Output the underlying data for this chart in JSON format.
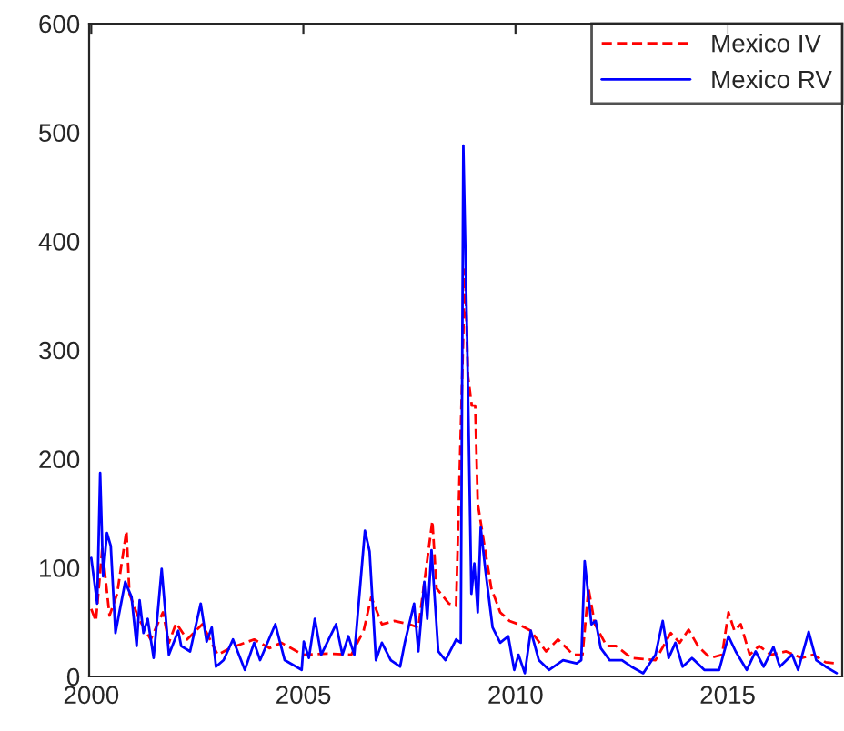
{
  "chart_data": {
    "type": "line",
    "xlim": [
      1999.95,
      2017.7
    ],
    "ylim": [
      0,
      600
    ],
    "xticks": [
      2000,
      2005,
      2010,
      2015
    ],
    "yticks": [
      0,
      100,
      200,
      300,
      400,
      500,
      600
    ],
    "grid": false,
    "legend": "top right",
    "marker": "none",
    "series": [
      {
        "name": "Mexico IV",
        "color": "#ff0000",
        "line_style": "dashed",
        "x": [
          2000.0,
          2000.11,
          2000.26,
          2000.43,
          2000.61,
          2000.83,
          2000.9,
          2001.12,
          2001.4,
          2001.69,
          2001.83,
          2002.0,
          2002.26,
          2002.62,
          2002.98,
          2003.27,
          2003.84,
          2004.2,
          2004.48,
          2004.99,
          2005.56,
          2006.13,
          2006.42,
          2006.6,
          2006.85,
          2007.14,
          2007.49,
          2007.71,
          2008.04,
          2008.14,
          2008.43,
          2008.6,
          2008.81,
          2008.88,
          2008.97,
          2009.05,
          2009.11,
          2009.29,
          2009.43,
          2009.64,
          2009.86,
          2010.07,
          2010.36,
          2010.72,
          2011.0,
          2011.36,
          2011.58,
          2011.72,
          2011.87,
          2012.15,
          2012.37,
          2012.73,
          2013.3,
          2013.66,
          2013.87,
          2014.08,
          2014.3,
          2014.59,
          2014.87,
          2015.02,
          2015.16,
          2015.31,
          2015.52,
          2015.74,
          2016.02,
          2016.38,
          2016.74,
          2017.02,
          2017.31,
          2017.57
        ],
        "values": [
          62,
          51,
          118,
          56,
          76,
          134,
          76,
          53,
          34,
          59,
          31,
          49,
          34,
          48,
          20,
          26,
          34,
          26,
          31,
          20,
          21,
          20,
          42,
          73,
          48,
          51,
          48,
          45,
          143,
          81,
          67,
          65,
          374,
          276,
          249,
          249,
          159,
          115,
          81,
          59,
          51,
          48,
          42,
          23,
          34,
          20,
          20,
          81,
          48,
          28,
          28,
          17,
          15,
          40,
          31,
          43,
          28,
          17,
          20,
          59,
          42,
          48,
          20,
          28,
          20,
          23,
          17,
          20,
          13,
          12
        ]
      },
      {
        "name": "Mexico RV",
        "color": "#0000ff",
        "line_style": "solid",
        "x": [
          2000.0,
          2000.14,
          2000.21,
          2000.28,
          2000.37,
          2000.46,
          2000.57,
          2000.8,
          2000.95,
          2001.07,
          2001.14,
          2001.23,
          2001.33,
          2001.47,
          2001.66,
          2001.83,
          2002.05,
          2002.12,
          2002.33,
          2002.58,
          2002.72,
          2002.84,
          2002.94,
          2003.12,
          2003.34,
          2003.62,
          2003.84,
          2003.98,
          2004.34,
          2004.56,
          2004.96,
          2005.01,
          2005.13,
          2005.27,
          2005.42,
          2005.77,
          2005.92,
          2006.06,
          2006.2,
          2006.45,
          2006.56,
          2006.71,
          2006.85,
          2007.06,
          2007.28,
          2007.39,
          2007.61,
          2007.71,
          2007.85,
          2007.92,
          2008.02,
          2008.18,
          2008.35,
          2008.6,
          2008.71,
          2008.77,
          2008.86,
          2008.96,
          2009.03,
          2009.11,
          2009.18,
          2009.29,
          2009.46,
          2009.64,
          2009.83,
          2009.97,
          2010.07,
          2010.22,
          2010.36,
          2010.55,
          2010.79,
          2011.12,
          2011.44,
          2011.55,
          2011.63,
          2011.79,
          2011.89,
          2012.01,
          2012.22,
          2012.51,
          2012.73,
          2013.01,
          2013.3,
          2013.47,
          2013.61,
          2013.77,
          2013.94,
          2014.16,
          2014.45,
          2014.8,
          2015.02,
          2015.19,
          2015.45,
          2015.66,
          2015.85,
          2016.08,
          2016.23,
          2016.52,
          2016.66,
          2016.91,
          2017.09,
          2017.31,
          2017.57
        ],
        "values": [
          109,
          67,
          187,
          92,
          132,
          120,
          40,
          87,
          73,
          28,
          70,
          40,
          53,
          17,
          99,
          20,
          42,
          28,
          23,
          67,
          32,
          45,
          9,
          15,
          34,
          6,
          31,
          15,
          48,
          15,
          6,
          32,
          17,
          53,
          20,
          48,
          20,
          37,
          20,
          134,
          115,
          15,
          31,
          15,
          9,
          31,
          67,
          23,
          87,
          53,
          116,
          23,
          15,
          34,
          31,
          488,
          310,
          76,
          104,
          59,
          137,
          98,
          45,
          31,
          37,
          6,
          20,
          3,
          42,
          15,
          6,
          15,
          12,
          15,
          106,
          48,
          51,
          26,
          15,
          15,
          9,
          3,
          20,
          51,
          17,
          31,
          9,
          17,
          6,
          6,
          37,
          23,
          6,
          23,
          9,
          27,
          9,
          20,
          6,
          41,
          15,
          9,
          3
        ]
      }
    ]
  }
}
